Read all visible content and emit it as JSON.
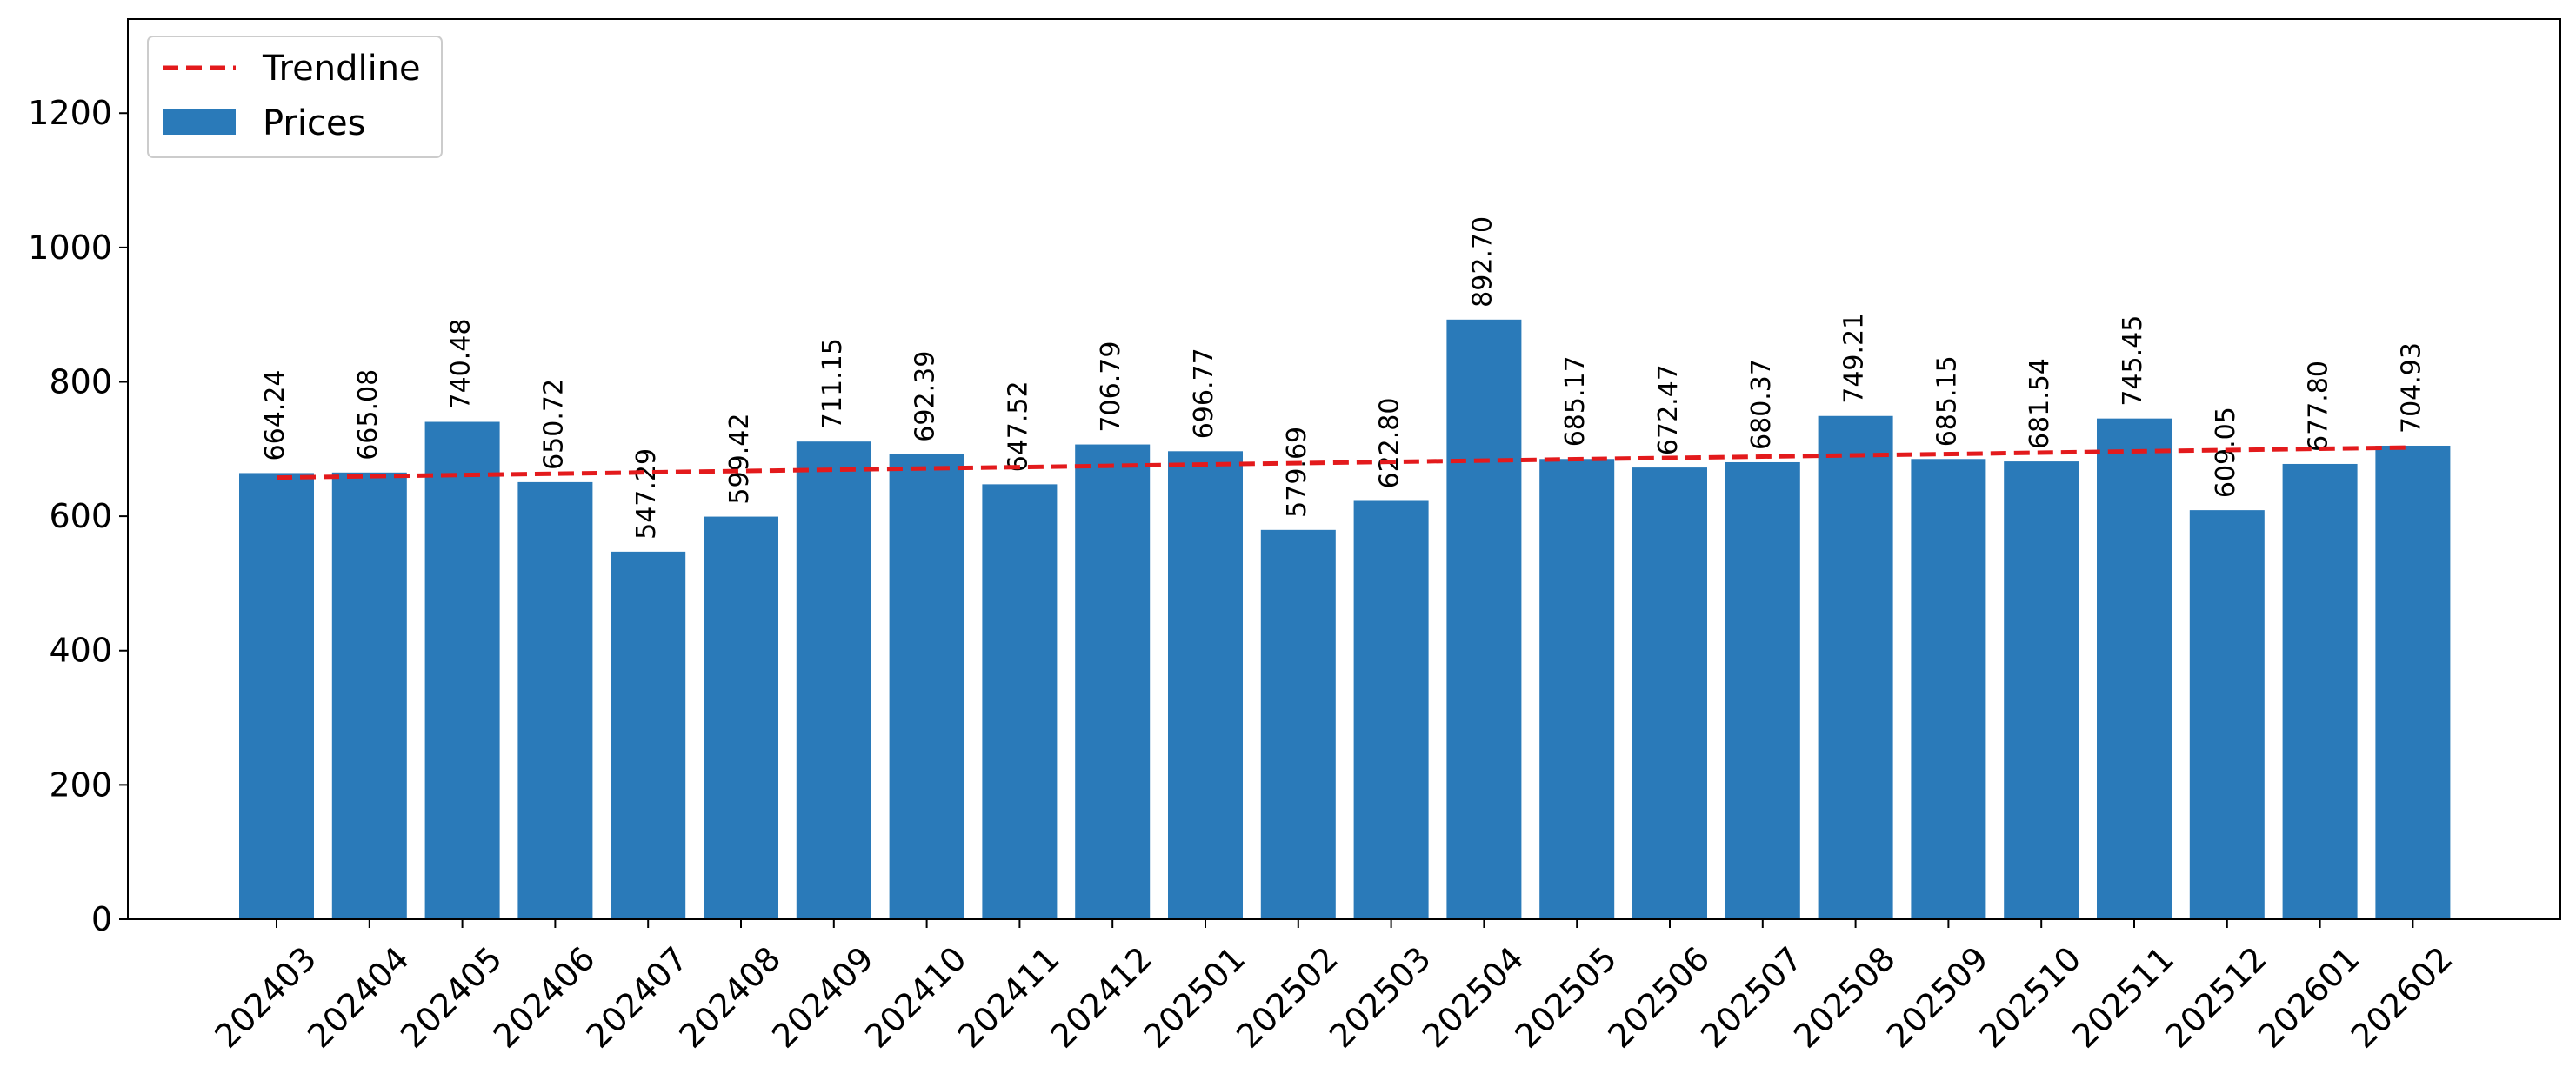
{
  "chart_data": {
    "type": "bar",
    "title": "",
    "xlabel": "",
    "ylabel": "",
    "ylim": [
      0,
      1340
    ],
    "yticks": [
      0,
      200,
      400,
      600,
      800,
      1000,
      1200
    ],
    "grid": false,
    "legend_position": "top-left",
    "categories": [
      "202403",
      "202404",
      "202405",
      "202406",
      "202407",
      "202408",
      "202409",
      "202410",
      "202411",
      "202412",
      "202501",
      "202502",
      "202503",
      "202504",
      "202505",
      "202506",
      "202507",
      "202508",
      "202509",
      "202510",
      "202511",
      "202512",
      "202601",
      "202602"
    ],
    "series": [
      {
        "name": "Prices",
        "kind": "bar",
        "color": "#2a7ab9",
        "values": [
          664.24,
          665.08,
          740.48,
          650.72,
          547.29,
          599.42,
          711.15,
          692.39,
          647.52,
          706.79,
          696.77,
          579.69,
          622.8,
          892.7,
          685.17,
          672.47,
          680.37,
          749.21,
          685.15,
          681.54,
          745.45,
          609.05,
          677.8,
          704.93
        ],
        "labels": [
          "664.24",
          "665.08",
          "740.48",
          "650.72",
          "547.29",
          "599.42",
          "711.15",
          "692.39",
          "647.52",
          "706.79",
          "696.77",
          "579.69",
          "622.80",
          "892.70",
          "685.17",
          "672.47",
          "680.37",
          "749.21",
          "685.15",
          "681.54",
          "745.45",
          "609.05",
          "677.80",
          "704.93"
        ]
      },
      {
        "name": "Trendline",
        "kind": "line",
        "style": "dashed",
        "color": "#e31a1c",
        "start": 657.5,
        "end": 702.4
      }
    ]
  }
}
